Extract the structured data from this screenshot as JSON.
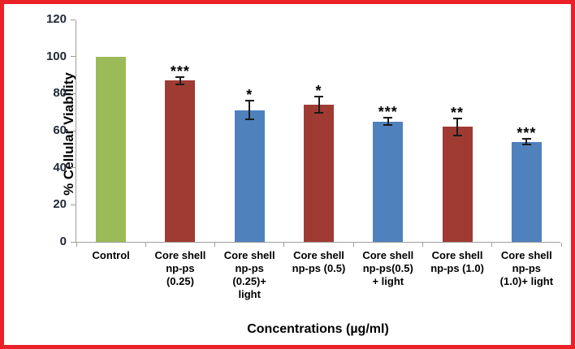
{
  "frame": {
    "border_color": "#ea2127",
    "background": "#ffffff"
  },
  "chart_data": {
    "type": "bar",
    "title": "",
    "xlabel": "Concentrations (µg/ml)",
    "ylabel": "% Cellular Viability",
    "ylim": [
      0,
      120
    ],
    "yticks": [
      0,
      20,
      40,
      60,
      80,
      100,
      120
    ],
    "grid": false,
    "legend": "none",
    "categories": [
      "Control",
      "Core shell\nnp-ps\n(0.25)",
      "Core shell\nnp-ps\n(0.25)+\nlight",
      "Core shell\nnp-ps (0.5)",
      "Core shell\nnp-ps(0.5)\n+ light",
      "Core shell\nnp-ps (1.0)",
      "Core shell\nnp-ps\n(1.0)+ light"
    ],
    "values": [
      100,
      87,
      71,
      74,
      65,
      62,
      54
    ],
    "errors": [
      0,
      2,
      5,
      4.5,
      2,
      4.5,
      1.5
    ],
    "significance": [
      "",
      "***",
      "*",
      "*",
      "***",
      "**",
      "***"
    ],
    "bar_colors": [
      "#9bbb59",
      "#a03b33",
      "#4f81bd",
      "#a03b33",
      "#4f81bd",
      "#a03b33",
      "#4f81bd"
    ],
    "axis_color": "#9d9d9d",
    "error_bar_color": "#1a1a1a"
  }
}
